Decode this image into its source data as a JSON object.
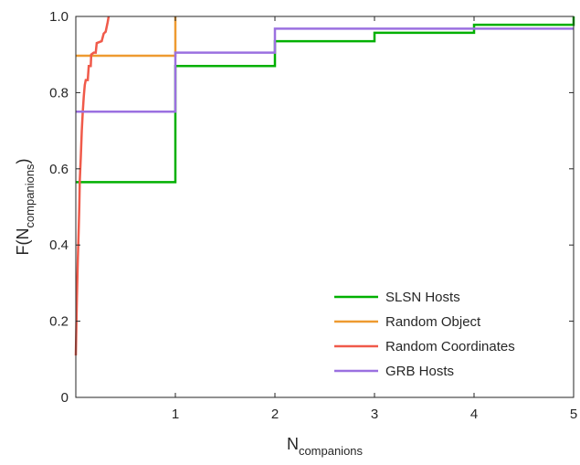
{
  "chart_data": {
    "type": "line",
    "title": "",
    "xlabel": {
      "main": "N",
      "sub": "companions"
    },
    "ylabel": {
      "prefix": "F(N",
      "sub": "companions",
      "suffix": ")"
    },
    "xlim": [
      0,
      5
    ],
    "ylim": [
      0,
      1
    ],
    "xticks": [
      1,
      2,
      3,
      4,
      5
    ],
    "xtick_labels": [
      "1",
      "2",
      "3",
      "4",
      "5"
    ],
    "yticks": [
      0,
      0.2,
      0.4,
      0.6,
      0.8,
      1.0
    ],
    "ytick_labels": [
      "0",
      "0.2",
      "0.4",
      "0.6",
      "0.8",
      "1.0"
    ],
    "grid": false,
    "legend_position": "bottom-right",
    "series": [
      {
        "name": "SLSN Hosts",
        "color": "#00b000",
        "step": true,
        "points": [
          [
            0,
            0.565
          ],
          [
            1,
            0.565
          ],
          [
            1,
            0.87
          ],
          [
            2,
            0.87
          ],
          [
            2,
            0.935
          ],
          [
            3,
            0.935
          ],
          [
            3,
            0.957
          ],
          [
            4,
            0.957
          ],
          [
            4,
            0.978
          ],
          [
            5,
            0.978
          ],
          [
            5,
            1.0
          ]
        ]
      },
      {
        "name": "Random Object",
        "color": "#ee9a30",
        "step": true,
        "points": [
          [
            0,
            0.897
          ],
          [
            1,
            0.897
          ],
          [
            1,
            1.0
          ]
        ]
      },
      {
        "name": "Random Coordinates",
        "color": "#f05a4a",
        "step": false,
        "points": [
          [
            0.0,
            0.11
          ],
          [
            0.01,
            0.25
          ],
          [
            0.02,
            0.36
          ],
          [
            0.03,
            0.45
          ],
          [
            0.035,
            0.5
          ],
          [
            0.04,
            0.57
          ],
          [
            0.05,
            0.63
          ],
          [
            0.06,
            0.7
          ],
          [
            0.07,
            0.75
          ],
          [
            0.08,
            0.79
          ],
          [
            0.09,
            0.82
          ],
          [
            0.1,
            0.833
          ],
          [
            0.12,
            0.833
          ],
          [
            0.13,
            0.87
          ],
          [
            0.15,
            0.87
          ],
          [
            0.155,
            0.9
          ],
          [
            0.18,
            0.905
          ],
          [
            0.2,
            0.905
          ],
          [
            0.21,
            0.93
          ],
          [
            0.26,
            0.935
          ],
          [
            0.28,
            0.955
          ],
          [
            0.3,
            0.96
          ],
          [
            0.32,
            0.985
          ],
          [
            0.33,
            1.0
          ]
        ]
      },
      {
        "name": "GRB Hosts",
        "color": "#9b70e0",
        "step": true,
        "points": [
          [
            0,
            0.75
          ],
          [
            1,
            0.75
          ],
          [
            1,
            0.905
          ],
          [
            2,
            0.905
          ],
          [
            2,
            0.968
          ],
          [
            3,
            0.968
          ],
          [
            4,
            0.968
          ],
          [
            4,
            0.968
          ],
          [
            5,
            0.968
          ]
        ]
      }
    ]
  }
}
